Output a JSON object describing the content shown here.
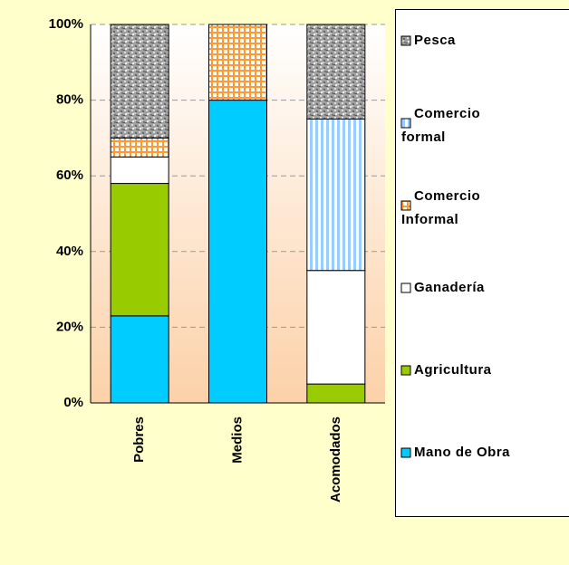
{
  "chart_data": {
    "type": "stacked_bar",
    "categories": [
      "Pobres",
      "Medios",
      "Acomodados"
    ],
    "series": [
      {
        "name": "Mano de Obra",
        "color": "#00ccff",
        "values": [
          23,
          80,
          0
        ]
      },
      {
        "name": "Agricultura",
        "color": "#99cc00",
        "values": [
          35,
          0,
          5
        ]
      },
      {
        "name": "Ganadería",
        "color": "#ffffff",
        "values": [
          7,
          0,
          30
        ]
      },
      {
        "name": "Comercio Informal",
        "color": "#ff9933",
        "values": [
          5,
          20,
          0
        ]
      },
      {
        "name": "Comercio formal",
        "color": "#99ccff",
        "values": [
          0,
          0,
          40
        ]
      },
      {
        "name": "Pesca",
        "color": "#a0a0a0",
        "values": [
          30,
          0,
          25
        ]
      }
    ],
    "ylim": [
      0,
      100
    ],
    "yticks": [
      {
        "value": 0,
        "label": "0%"
      },
      {
        "value": 20,
        "label": "20%"
      },
      {
        "value": 40,
        "label": "40%"
      },
      {
        "value": 60,
        "label": "60%"
      },
      {
        "value": 80,
        "label": "80%"
      },
      {
        "value": 100,
        "label": "100%"
      }
    ],
    "grid": true,
    "legend": "right"
  }
}
